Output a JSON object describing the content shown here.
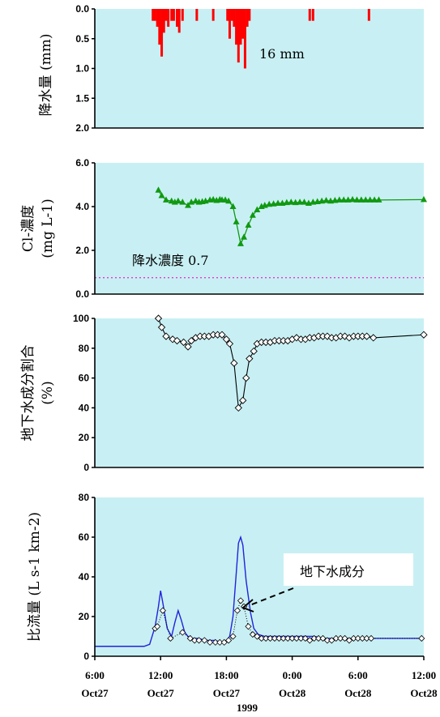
{
  "chart_data": [
    {
      "type": "bar",
      "panel": "rain",
      "ylabel": "降水量 (mm)",
      "yticks": [
        "0.0",
        "0.5",
        "1.0",
        "1.5",
        "2.0"
      ],
      "ylim": [
        0,
        2
      ],
      "inverted_y": true,
      "annotation": "16 mm",
      "color": "#ff0000",
      "x": [
        11.3,
        11.5,
        11.7,
        11.9,
        12.1,
        12.3,
        12.5,
        12.7,
        13.0,
        13.2,
        13.5,
        13.7,
        14.0,
        15.3,
        16.8,
        18.1,
        18.3,
        18.5,
        18.7,
        18.9,
        19.1,
        19.3,
        19.5,
        19.7,
        19.9,
        20.1,
        25.6,
        25.9,
        31.0
      ],
      "values": [
        0.2,
        0.2,
        0.3,
        0.6,
        0.8,
        0.4,
        0.2,
        0.3,
        0.2,
        0.2,
        0.3,
        0.4,
        0.2,
        0.2,
        0.2,
        0.2,
        0.5,
        0.2,
        0.3,
        0.6,
        0.9,
        0.6,
        0.5,
        1.0,
        0.3,
        0.2,
        0.2,
        0.2,
        0.2
      ]
    },
    {
      "type": "scatter",
      "panel": "cl",
      "ylabel_line1": "Cl-濃度",
      "ylabel_line2": "(mg L-1)",
      "yticks": [
        "0.0",
        "2.0",
        "4.0",
        "6.0"
      ],
      "ylim": [
        0,
        6
      ],
      "annotation": "降水濃度 0.7",
      "ref_line": 0.75,
      "color": "#119911",
      "x": [
        11.8,
        12.1,
        12.5,
        13.0,
        13.3,
        13.6,
        14.0,
        14.5,
        14.8,
        15.2,
        15.5,
        15.8,
        16.1,
        16.5,
        16.8,
        17.1,
        17.4,
        17.6,
        17.9,
        18.2,
        18.6,
        18.9,
        19.3,
        19.6,
        20.0,
        20.4,
        20.8,
        21.2,
        21.5,
        21.9,
        22.3,
        22.7,
        23.1,
        23.5,
        23.9,
        24.3,
        24.7,
        25.1,
        25.5,
        25.9,
        26.3,
        26.7,
        27.1,
        27.5,
        27.9,
        28.3,
        28.7,
        29.1,
        29.5,
        29.9,
        30.3,
        30.7,
        31.1,
        31.5,
        31.9,
        36.0
      ],
      "values": [
        4.75,
        4.5,
        4.3,
        4.25,
        4.2,
        4.25,
        4.2,
        4.05,
        4.2,
        4.25,
        4.2,
        4.22,
        4.25,
        4.3,
        4.32,
        4.28,
        4.32,
        4.3,
        4.3,
        4.25,
        4.0,
        3.3,
        2.3,
        2.6,
        3.15,
        3.6,
        3.85,
        4.0,
        4.05,
        4.1,
        4.12,
        4.15,
        4.15,
        4.18,
        4.2,
        4.18,
        4.2,
        4.2,
        4.15,
        4.2,
        4.22,
        4.25,
        4.28,
        4.25,
        4.28,
        4.3,
        4.3,
        4.3,
        4.32,
        4.3,
        4.3,
        4.3,
        4.3,
        4.3,
        4.3,
        4.32
      ]
    },
    {
      "type": "line",
      "panel": "gw_fraction",
      "ylabel_line1": "地下水成分割合",
      "ylabel_line2": "(%)",
      "yticks": [
        "0",
        "20",
        "40",
        "60",
        "80",
        "100"
      ],
      "ylim": [
        0,
        100
      ],
      "color": "#000000",
      "x": [
        11.8,
        12.1,
        12.5,
        13.1,
        13.5,
        14.1,
        14.5,
        14.8,
        15.2,
        15.6,
        16.0,
        16.4,
        16.8,
        17.2,
        17.6,
        18.0,
        18.3,
        18.7,
        19.1,
        19.5,
        19.8,
        20.1,
        20.5,
        20.8,
        21.2,
        21.6,
        22.0,
        22.4,
        22.8,
        23.2,
        23.6,
        24.0,
        24.4,
        24.8,
        25.2,
        25.6,
        26.0,
        26.4,
        26.8,
        27.2,
        27.6,
        28.0,
        28.4,
        28.8,
        29.2,
        29.6,
        30.0,
        30.4,
        30.8,
        31.4,
        36.0
      ],
      "values": [
        100,
        94,
        88,
        86,
        85,
        84,
        81,
        85,
        87,
        88,
        88,
        88,
        89,
        89,
        89,
        86,
        83,
        70,
        40,
        45,
        60,
        73,
        78,
        83,
        84,
        84,
        84,
        85,
        85,
        85,
        85,
        86,
        87,
        86,
        86,
        87,
        87,
        88,
        88,
        88,
        87,
        87,
        88,
        88,
        87,
        88,
        88,
        88,
        88,
        87,
        89
      ]
    },
    {
      "type": "line",
      "panel": "flow",
      "ylabel": "比流量 (L s-1 km-2)",
      "yticks": [
        "0",
        "20",
        "40",
        "60",
        "80"
      ],
      "ylim": [
        0,
        80
      ],
      "annotation": "地下水成分",
      "xticks": [
        {
          "time": "6:00",
          "date": "Oct27"
        },
        {
          "time": "12:00",
          "date": "Oct27"
        },
        {
          "time": "18:00",
          "date": "Oct27"
        },
        {
          "time": "0:00",
          "date": "Oct28"
        },
        {
          "time": "6:00",
          "date": "Oct28"
        },
        {
          "time": "12:00",
          "date": "Oct28"
        }
      ],
      "xlabel": "1999",
      "xlim": [
        6,
        36
      ],
      "series": [
        {
          "color": "#2222dd",
          "style": "line",
          "x": [
            6,
            8,
            10,
            10.5,
            11,
            11.5,
            11.8,
            12.0,
            12.2,
            12.6,
            13.0,
            13.3,
            13.6,
            13.9,
            14.2,
            14.5,
            14.9,
            15.5,
            16.0,
            16.5,
            17.0,
            17.5,
            18.0,
            18.3,
            18.6,
            18.9,
            19.1,
            19.3,
            19.5,
            19.8,
            20.2,
            20.5,
            20.9,
            21.5,
            22.0,
            23.0,
            24.0,
            25.0,
            26.0,
            27.0,
            28.0,
            29.0,
            30.0,
            31.0,
            32.0,
            33.0,
            34.0,
            35.0,
            36.0
          ],
          "values": [
            5,
            5,
            5,
            5,
            6,
            15,
            25,
            33,
            27,
            14,
            10,
            17,
            23,
            18,
            12,
            10,
            9,
            9,
            8,
            8,
            8,
            7,
            8,
            10,
            20,
            42,
            57,
            60,
            56,
            38,
            22,
            14,
            11,
            10,
            10,
            10,
            10,
            10,
            10,
            9,
            9,
            9,
            9,
            9,
            9,
            9,
            9,
            9,
            9
          ]
        },
        {
          "color": "#000000",
          "style": "dotted-diamond",
          "x": [
            11.5,
            11.7,
            12.2,
            12.9,
            14.0,
            14.7,
            15.1,
            15.5,
            16.0,
            16.5,
            17.0,
            17.4,
            17.8,
            18.2,
            18.6,
            19.0,
            19.3,
            19.6,
            20.0,
            20.4,
            20.8,
            21.2,
            21.6,
            22.0,
            22.4,
            22.8,
            23.2,
            23.6,
            24.0,
            24.4,
            24.8,
            25.2,
            25.6,
            26.0,
            26.4,
            26.8,
            27.2,
            27.6,
            28.0,
            28.4,
            28.8,
            29.2,
            29.6,
            30.0,
            30.4,
            30.8,
            31.2,
            35.8
          ],
          "values": [
            14,
            15,
            23,
            9,
            12,
            9,
            8,
            8,
            8,
            7,
            7,
            7,
            7,
            8,
            10,
            23,
            28,
            25,
            15,
            11,
            10,
            9,
            9,
            9,
            9,
            9,
            9,
            9,
            9,
            9,
            9,
            9,
            8,
            9,
            9,
            9,
            8,
            8,
            9,
            9,
            9,
            8,
            9,
            9,
            9,
            9,
            9,
            9
          ]
        }
      ]
    }
  ]
}
